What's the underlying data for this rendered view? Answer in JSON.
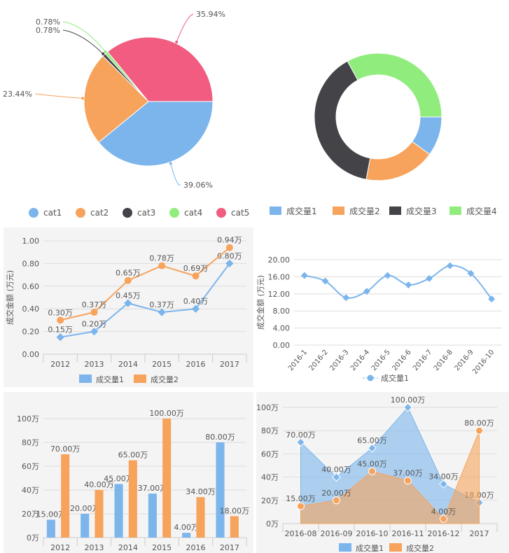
{
  "colors": {
    "blue": "#7cb5ec",
    "orange": "#f7a35c",
    "dark": "#434348",
    "green": "#90ed7d",
    "red": "#f15c80"
  },
  "chart_data": [
    {
      "type": "pie",
      "categories": [
        "cat1",
        "cat2",
        "cat3",
        "cat4",
        "cat5"
      ],
      "values": [
        39.06,
        23.44,
        0.78,
        0.78,
        35.94
      ],
      "labels": [
        "39.06%",
        "23.44%",
        "0.78%",
        "0.78%",
        "35.94%"
      ],
      "legend": "bottom"
    },
    {
      "type": "pie",
      "subtype": "donut",
      "categories": [
        "成交量1",
        "成交量2",
        "成交量3",
        "成交量4"
      ],
      "values": [
        10,
        18,
        39,
        33
      ],
      "legend": "bottom"
    },
    {
      "type": "line",
      "categories": [
        "2012",
        "2013",
        "2014",
        "2015",
        "2016",
        "2017"
      ],
      "ylabel": "成交金额 (万元)",
      "ylim": [
        0,
        1
      ],
      "yticks": [
        "0.00",
        "0.20",
        "0.40",
        "0.60",
        "0.80",
        "1.00"
      ],
      "series": [
        {
          "name": "成交量1",
          "values": [
            0.15,
            0.2,
            0.45,
            0.37,
            0.4,
            0.8
          ],
          "labels": [
            "0.15万",
            "0.20万",
            "0.45万",
            "0.37万",
            "0.40万",
            "0.80万"
          ]
        },
        {
          "name": "成交量2",
          "values": [
            0.3,
            0.37,
            0.65,
            0.78,
            0.69,
            0.94
          ],
          "labels": [
            "0.30万",
            "0.37万",
            "0.65万",
            "0.78万",
            "0.69万",
            "0.94万"
          ]
        }
      ]
    },
    {
      "type": "line",
      "smooth": true,
      "categories": [
        "2016-1",
        "2016-2",
        "2016-3",
        "2016-4",
        "2016-5",
        "2016-6",
        "2016-7",
        "2016-8",
        "2016-9",
        "2016-10"
      ],
      "ylabel": "成交金额 (万元)",
      "ylim": [
        0,
        20
      ],
      "yticks": [
        "0.00",
        "4.00",
        "8.00",
        "12.00",
        "16.00",
        "20.00"
      ],
      "series": [
        {
          "name": "成交量1",
          "values": [
            16.3,
            15.0,
            11.1,
            12.6,
            16.3,
            14.1,
            15.6,
            18.6,
            16.8,
            10.8
          ]
        }
      ]
    },
    {
      "type": "bar",
      "categories": [
        "2012",
        "2013",
        "2014",
        "2015",
        "2016",
        "2017"
      ],
      "ylim": [
        0,
        100
      ],
      "yticks": [
        "0万",
        "20万",
        "40万",
        "60万",
        "80万",
        "100万"
      ],
      "series": [
        {
          "name": "成交量1",
          "values": [
            15,
            20,
            45,
            37,
            4,
            80
          ],
          "labels": [
            "15.00万",
            "20.00万",
            "45.00万",
            "37.00万",
            "4.00万",
            "80.00万"
          ]
        },
        {
          "name": "成交量2",
          "values": [
            70,
            40,
            65,
            100,
            34,
            18
          ],
          "labels": [
            "70.00万",
            "40.00万",
            "65.00万",
            "100.00万",
            "34.00万",
            "18.00万"
          ]
        }
      ]
    },
    {
      "type": "area",
      "categories": [
        "2016-08",
        "2016-09",
        "2016-10",
        "2016-11",
        "2016-12",
        "2017"
      ],
      "ylim": [
        0,
        100
      ],
      "yticks": [
        "0万",
        "20万",
        "40万",
        "60万",
        "80万",
        "100万"
      ],
      "series": [
        {
          "name": "成交量1",
          "values": [
            70,
            40,
            65,
            100,
            34,
            18
          ],
          "labels": [
            "70.00万",
            "40.00万",
            "65.00万",
            "100.00万",
            "34.00万",
            "18.00万"
          ]
        },
        {
          "name": "成交量2",
          "values": [
            15,
            20,
            45,
            37,
            4,
            80
          ],
          "labels": [
            "15.00万",
            "20.00万",
            "45.00万",
            "37.00万",
            "4.00万",
            "80.00万"
          ]
        }
      ]
    }
  ]
}
